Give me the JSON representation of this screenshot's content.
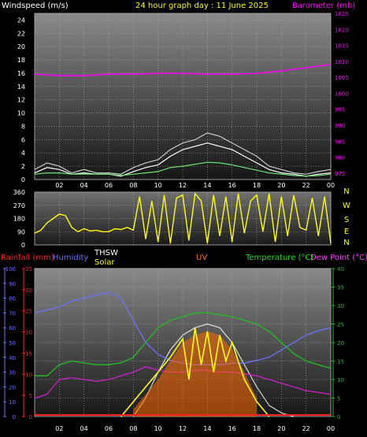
{
  "header": {
    "left_label": "Windspeed (m/s)",
    "center_label": "24 hour graph day : 11 June 2025",
    "right_label": "Barometer (mb)"
  },
  "bottom_header": {
    "rainfall_label": "Rainfall (mm)",
    "humidity_label": "Humidity",
    "thsw_label": "THSW",
    "solar_label": "Solar",
    "uv_label": "UV",
    "temperature_label": "Temperature (°C)",
    "dewpoint_label": "Dew Point (°C)"
  },
  "colors": {
    "windspeed": "#ffffff",
    "gust": "#c8c8c8",
    "windavg": "#6ee06e",
    "barometer": "#ff00ff",
    "direction": "#ffff00",
    "rainfall": "#ff2020",
    "humidity": "#7070ff",
    "thsw": "#ffffff",
    "solar": "#ffff00",
    "uv": "#ff6a00",
    "temperature": "#20c020",
    "dewpoint": "#cc20cc"
  },
  "chart_data": [
    {
      "type": "line",
      "name": "wind-barometer",
      "x_ticks": [
        "02",
        "04",
        "06",
        "08",
        "10",
        "12",
        "14",
        "16",
        "18",
        "20",
        "22",
        "00"
      ],
      "ylim_left": [
        0,
        25
      ],
      "y_ticks_left": [
        "0",
        "2",
        "4",
        "6",
        "8",
        "10",
        "12",
        "14",
        "16",
        "18",
        "20",
        "22",
        "24"
      ],
      "ylim_right": [
        973,
        1025
      ],
      "y_ticks_right": [
        "975",
        "980",
        "985",
        "990",
        "995",
        "1000",
        "1005",
        "1010",
        "1015",
        "1020",
        "1025"
      ],
      "series": [
        {
          "key": "gust",
          "x": [
            0,
            1,
            2,
            3,
            4,
            5,
            6,
            7,
            8,
            9,
            10,
            11,
            12,
            13,
            14,
            15,
            16,
            17,
            18,
            19,
            20,
            21,
            22,
            23,
            24
          ],
          "values": [
            1.5,
            2.5,
            2,
            1,
            1.5,
            1,
            1,
            0.8,
            1.8,
            2.5,
            3,
            4.5,
            5.5,
            6,
            7,
            6.5,
            5.5,
            4.5,
            3.5,
            2,
            1.5,
            1,
            0.8,
            1.2,
            1.5
          ]
        },
        {
          "key": "windspeed",
          "x": [
            0,
            1,
            2,
            3,
            4,
            5,
            6,
            7,
            8,
            9,
            10,
            11,
            12,
            13,
            14,
            15,
            16,
            17,
            18,
            19,
            20,
            21,
            22,
            23,
            24
          ],
          "values": [
            1,
            1.8,
            1.5,
            0.8,
            1,
            0.8,
            0.8,
            0.5,
            1.2,
            1.8,
            2.2,
            3.5,
            4.5,
            5,
            5.5,
            5,
            4.5,
            3.5,
            2.5,
            1.5,
            1,
            0.8,
            0.5,
            0.8,
            1
          ]
        },
        {
          "key": "windavg",
          "x": [
            0,
            1,
            2,
            3,
            4,
            5,
            6,
            7,
            8,
            9,
            10,
            11,
            12,
            13,
            14,
            15,
            16,
            17,
            18,
            19,
            20,
            21,
            22,
            23,
            24
          ],
          "values": [
            0.8,
            1,
            1,
            0.8,
            0.8,
            0.8,
            0.8,
            0.6,
            0.8,
            1,
            1.2,
            1.8,
            2,
            2.3,
            2.6,
            2.5,
            2.2,
            1.8,
            1.4,
            1,
            0.8,
            0.6,
            0.5,
            0.6,
            0.8
          ]
        },
        {
          "key": "barometer",
          "axis": "right",
          "x": [
            0,
            2,
            4,
            6,
            8,
            10,
            12,
            14,
            16,
            18,
            20,
            22,
            24
          ],
          "values": [
            1006,
            1005.5,
            1005.5,
            1006,
            1006,
            1006.2,
            1006.2,
            1006,
            1006,
            1006.2,
            1007,
            1008,
            1009
          ]
        }
      ]
    },
    {
      "type": "scatter",
      "name": "wind-direction",
      "y_ticks": [
        "0",
        "90",
        "180",
        "270",
        "360"
      ],
      "y_tick_values": [
        0,
        90,
        180,
        270,
        360
      ],
      "compass_labels": [
        "N",
        "W",
        "S",
        "E",
        "N"
      ],
      "ylim": [
        0,
        360
      ],
      "x": [
        0,
        0.5,
        1,
        1.5,
        2,
        2.5,
        3,
        3.5,
        4,
        4.5,
        5,
        5.5,
        6,
        6.5,
        7,
        7.5,
        8,
        8.5,
        9,
        9.5,
        10,
        10.5,
        11,
        11.5,
        12,
        12.5,
        13,
        13.5,
        14,
        14.5,
        15,
        15.5,
        16,
        16.5,
        17,
        17.5,
        18,
        18.5,
        19,
        19.5,
        20,
        20.5,
        21,
        21.5,
        22,
        22.5,
        23,
        23.5,
        24
      ],
      "values": [
        80,
        100,
        150,
        180,
        210,
        200,
        120,
        90,
        110,
        95,
        100,
        90,
        90,
        110,
        105,
        120,
        100,
        330,
        40,
        300,
        20,
        340,
        10,
        320,
        340,
        30,
        350,
        300,
        10,
        340,
        60,
        330,
        20,
        350,
        80,
        300,
        340,
        90,
        350,
        20,
        330,
        60,
        340,
        120,
        100,
        320,
        60,
        330,
        10
      ]
    },
    {
      "type": "line",
      "name": "rain-humidity-temperature",
      "x_ticks": [
        "02",
        "04",
        "06",
        "08",
        "10",
        "12",
        "14",
        "16",
        "18",
        "20",
        "22",
        "00"
      ],
      "ylim_left_humidity": [
        0,
        100
      ],
      "y_ticks_humidity": [
        "0",
        "10",
        "20",
        "30",
        "40",
        "50",
        "60",
        "70",
        "80",
        "90",
        "100"
      ],
      "ylim_left_rain": [
        0,
        35
      ],
      "y_ticks_rain": [
        "0",
        "5",
        "10",
        "15",
        "20",
        "25",
        "30",
        "35"
      ],
      "ylim_right": [
        0,
        40
      ],
      "y_ticks_right": [
        "0",
        "5",
        "10",
        "15",
        "20",
        "25",
        "30",
        "35",
        "40"
      ],
      "series": [
        {
          "key": "humidity",
          "axis": "humidity",
          "x": [
            0,
            1,
            2,
            3,
            4,
            5,
            6,
            7,
            8,
            9,
            10,
            11,
            12,
            13,
            14,
            15,
            16,
            17,
            18,
            19,
            20,
            21,
            22,
            23,
            24
          ],
          "values": [
            70,
            72,
            74,
            78,
            80,
            82,
            84,
            80,
            65,
            50,
            42,
            38,
            36,
            35,
            35,
            35,
            36,
            36,
            38,
            40,
            45,
            50,
            55,
            58,
            60
          ]
        },
        {
          "key": "temperature",
          "axis": "right",
          "x": [
            0,
            1,
            2,
            3,
            4,
            5,
            6,
            7,
            8,
            9,
            10,
            11,
            12,
            13,
            14,
            15,
            16,
            17,
            18,
            19,
            20,
            21,
            22,
            23,
            24
          ],
          "values": [
            11,
            11,
            14,
            15,
            14.5,
            14,
            14,
            14.5,
            16,
            20,
            24,
            26,
            27,
            28,
            28,
            27.5,
            27,
            26,
            25,
            23,
            20,
            17,
            15,
            14,
            13
          ]
        },
        {
          "key": "dewpoint",
          "axis": "right",
          "x": [
            0,
            1,
            2,
            3,
            4,
            5,
            6,
            7,
            8,
            9,
            10,
            11,
            12,
            13,
            14,
            15,
            16,
            17,
            18,
            19,
            20,
            21,
            22,
            23,
            24
          ],
          "values": [
            5,
            6,
            10,
            10.5,
            10,
            9.5,
            10,
            11,
            12,
            13.5,
            12.5,
            12,
            12,
            12.5,
            12.5,
            12,
            12,
            11.5,
            11,
            10,
            9,
            8,
            7,
            6.5,
            6
          ]
        },
        {
          "key": "thsw",
          "axis": "right",
          "x": [
            8,
            9,
            10,
            11,
            12,
            13,
            14,
            15,
            16,
            17,
            18,
            19,
            20,
            21
          ],
          "values": [
            0,
            5,
            12,
            18,
            22,
            24,
            25,
            24,
            20,
            14,
            8,
            3,
            1,
            0
          ]
        },
        {
          "key": "solar",
          "axis": "right",
          "x": [
            7,
            8,
            9,
            10,
            11,
            12,
            12.5,
            13,
            13.5,
            14,
            14.5,
            15,
            15.5,
            16,
            17,
            18,
            19
          ],
          "values": [
            0,
            4,
            8,
            12,
            16,
            21,
            10,
            24,
            14,
            23,
            12,
            22,
            15,
            20,
            10,
            4,
            0
          ]
        },
        {
          "key": "uv",
          "axis": "right",
          "x": [
            8,
            9,
            10,
            11,
            12,
            13,
            14,
            15,
            16,
            17,
            18
          ],
          "values": [
            2,
            6,
            10,
            15,
            20,
            22,
            23,
            22,
            18,
            12,
            5
          ]
        }
      ]
    }
  ]
}
